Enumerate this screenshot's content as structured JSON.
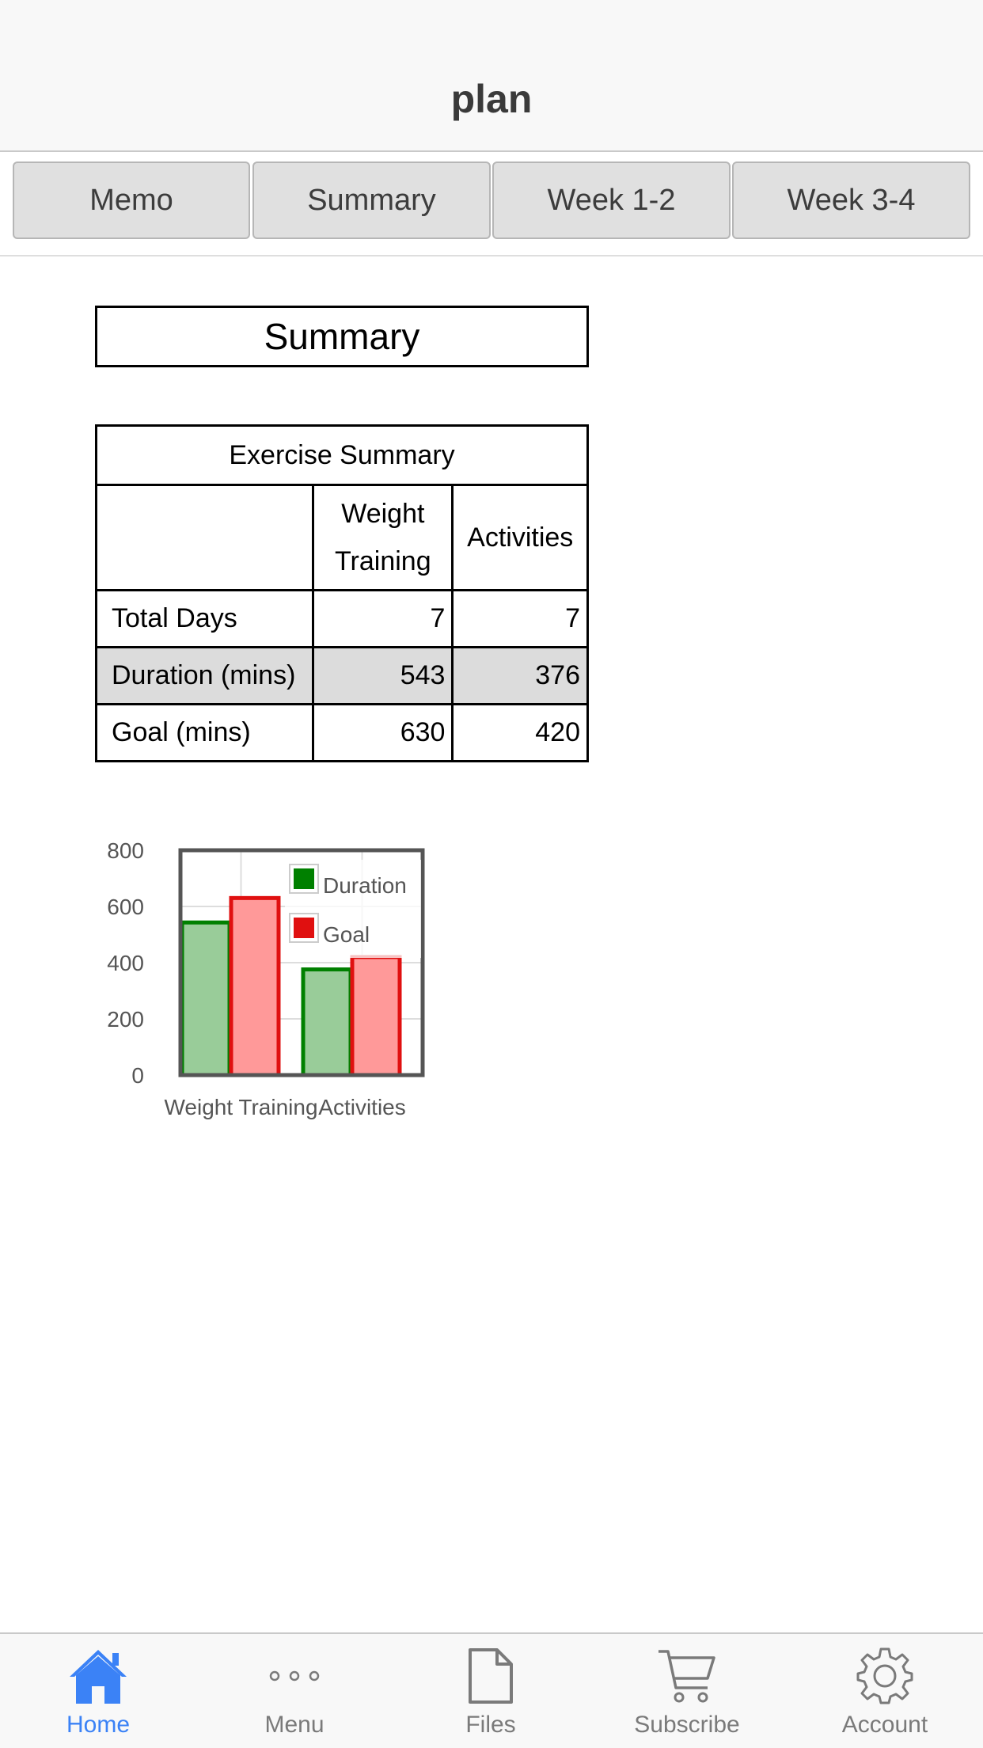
{
  "navbar": {
    "title": "plan"
  },
  "tabs": [
    {
      "label": "Memo"
    },
    {
      "label": "Summary"
    },
    {
      "label": "Week 1-2"
    },
    {
      "label": "Week 3-4"
    }
  ],
  "summary_heading": "Summary",
  "table": {
    "caption": "Exercise Summary",
    "columns": [
      "",
      "Weight Training",
      "Activities"
    ],
    "col1_line1": "Weight",
    "col1_line2": "Training",
    "rows": [
      {
        "label": "Total Days",
        "weight": "7",
        "activities": "7"
      },
      {
        "label": "Duration (mins)",
        "weight": "543",
        "activities": "376"
      },
      {
        "label": "Goal (mins)",
        "weight": "630",
        "activities": "420"
      }
    ]
  },
  "chart_data": {
    "type": "bar",
    "categories": [
      "Weight Training",
      "Activities"
    ],
    "series": [
      {
        "name": "Duration",
        "values": [
          543,
          376
        ],
        "color": "#008000",
        "fill": "#99cc99"
      },
      {
        "name": "Goal",
        "values": [
          630,
          420
        ],
        "color": "#e01010",
        "fill": "#ff9999"
      }
    ],
    "yticks": [
      "0",
      "200",
      "400",
      "600",
      "800"
    ],
    "ylim": [
      0,
      800
    ],
    "grid": true,
    "legend": "top-right"
  },
  "tabbar": [
    {
      "label": "Home",
      "icon": "home-icon",
      "active": true
    },
    {
      "label": "Menu",
      "icon": "more-icon",
      "active": false
    },
    {
      "label": "Files",
      "icon": "file-icon",
      "active": false
    },
    {
      "label": "Subscribe",
      "icon": "cart-icon",
      "active": false
    },
    {
      "label": "Account",
      "icon": "gear-icon",
      "active": false
    }
  ],
  "colors": {
    "accent": "#3b82f6",
    "inactive": "#7a7a7a"
  }
}
